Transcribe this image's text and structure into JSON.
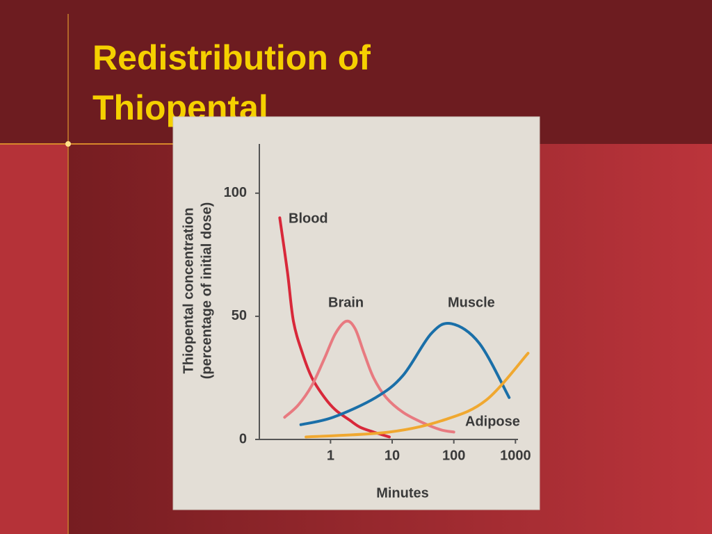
{
  "slide": {
    "title": [
      "Redistribution of",
      "Thiopental"
    ]
  },
  "chart_data": {
    "type": "line",
    "xlabel": "Minutes",
    "ylabel": [
      "Thiopental concentration",
      "(percentage of initial dose)"
    ],
    "xscale": "log",
    "xlim": [
      0.07,
      1100
    ],
    "xticks": [
      1,
      10,
      100,
      1000
    ],
    "ylim": [
      0,
      120
    ],
    "yticks": [
      0,
      50,
      100
    ],
    "series": [
      {
        "name": "Blood",
        "color": "#d8283a",
        "x": [
          0.15,
          0.2,
          0.25,
          0.35,
          0.5,
          0.8,
          1.2,
          2,
          3,
          5,
          9
        ],
        "values": [
          90,
          68,
          48,
          35,
          25,
          17,
          12,
          8,
          5,
          3,
          1
        ]
      },
      {
        "name": "Brain",
        "color": "#e87a80",
        "x": [
          0.18,
          0.3,
          0.5,
          0.8,
          1.2,
          1.8,
          2.5,
          3.5,
          5,
          8,
          15,
          30,
          60,
          100
        ],
        "values": [
          9,
          14,
          22,
          33,
          43,
          48,
          45,
          35,
          25,
          17,
          11,
          7,
          4,
          3
        ]
      },
      {
        "name": "Muscle",
        "color": "#1a6fa8",
        "x": [
          0.33,
          1.1,
          5.4,
          15,
          43,
          92,
          260,
          790
        ],
        "values": [
          6,
          9,
          17,
          26,
          43,
          47,
          39,
          17
        ]
      },
      {
        "name": "Adipose",
        "color": "#f0a830",
        "x": [
          0.4,
          9,
          71,
          336,
          1600
        ],
        "values": [
          1,
          3,
          8,
          16,
          35
        ]
      }
    ]
  }
}
